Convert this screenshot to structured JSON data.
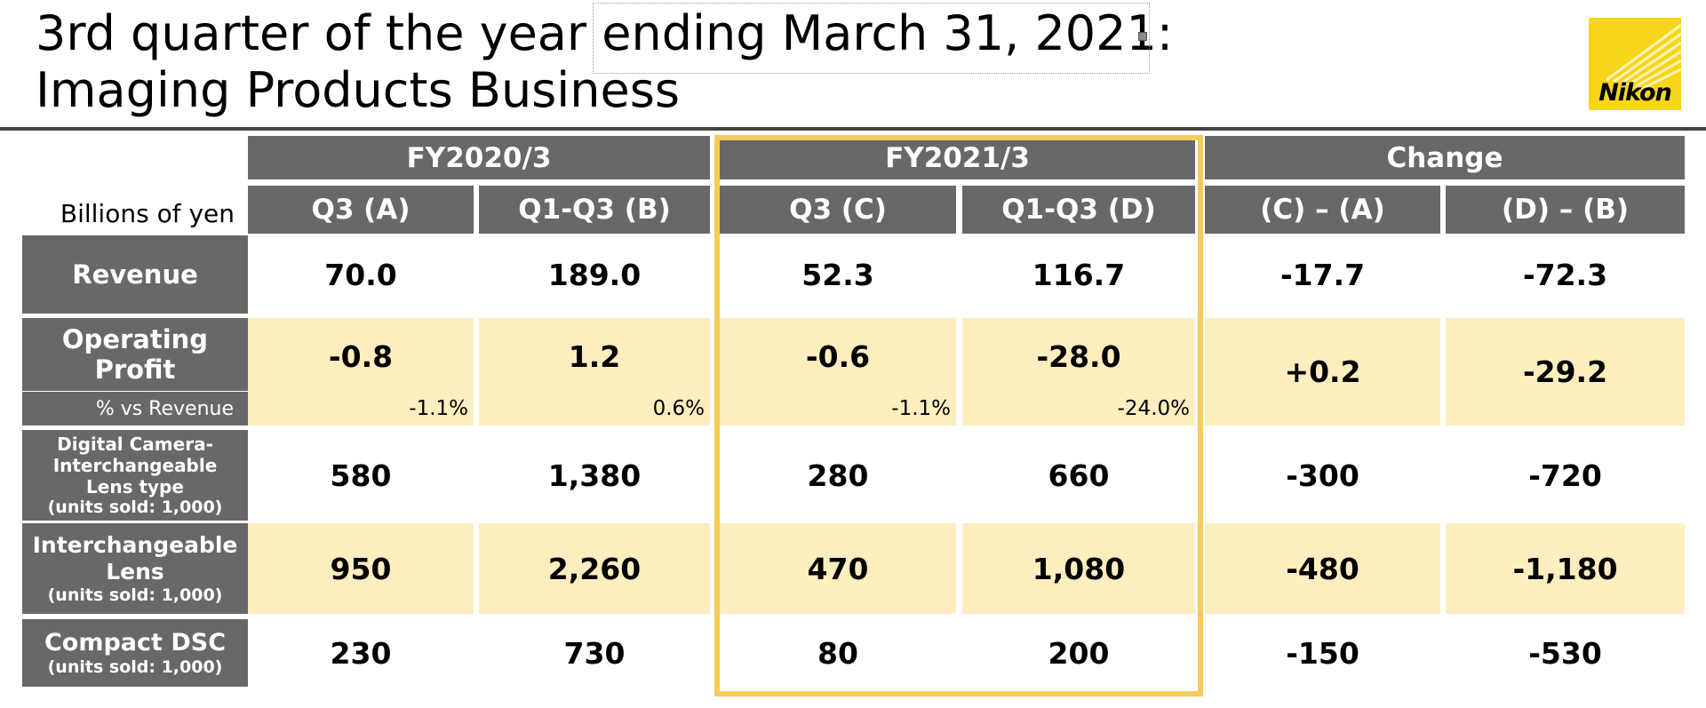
{
  "title": {
    "line1": "3rd quarter of the year ending March 31, 2021:",
    "line2": "Imaging Products Business"
  },
  "logo": {
    "text": "Nikon",
    "accent_color": "#f7d51d"
  },
  "table": {
    "unit_label": "Billions of yen",
    "groups": [
      "FY2020/3",
      "FY2021/3",
      "Change"
    ],
    "columns": [
      "Q3 (A)",
      "Q1-Q3 (B)",
      "Q3 (C)",
      "Q1-Q3 (D)",
      "(C) – (A)",
      "(D) – (B)"
    ],
    "rows": [
      {
        "label": "Revenue",
        "values": [
          "70.0",
          "189.0",
          "52.3",
          "116.7",
          "-17.7",
          "-72.3"
        ]
      },
      {
        "label": "Operating Profit",
        "values": [
          "-0.8",
          "1.2",
          "-0.6",
          "-28.0",
          "+0.2",
          "-29.2"
        ],
        "pct_label": "% vs Revenue",
        "pct_values": [
          "-1.1%",
          "0.6%",
          "-1.1%",
          "-24.0%"
        ]
      },
      {
        "label": "Digital Camera-Interchangeable Lens type",
        "sublabel": "(units sold: 1,000)",
        "values": [
          "580",
          "1,380",
          "280",
          "660",
          "-300",
          "-720"
        ]
      },
      {
        "label": "Interchangeable Lens",
        "sublabel": "(units sold: 1,000)",
        "values": [
          "950",
          "2,260",
          "470",
          "1,080",
          "-480",
          "-1,180"
        ]
      },
      {
        "label": "Compact DSC",
        "sublabel": "(units sold: 1,000)",
        "values": [
          "230",
          "730",
          "80",
          "200",
          "-150",
          "-530"
        ]
      }
    ],
    "colors": {
      "header_bg": "#686868",
      "highlight_row": "#fdedbf",
      "highlight_border": "#f6cc58"
    }
  }
}
